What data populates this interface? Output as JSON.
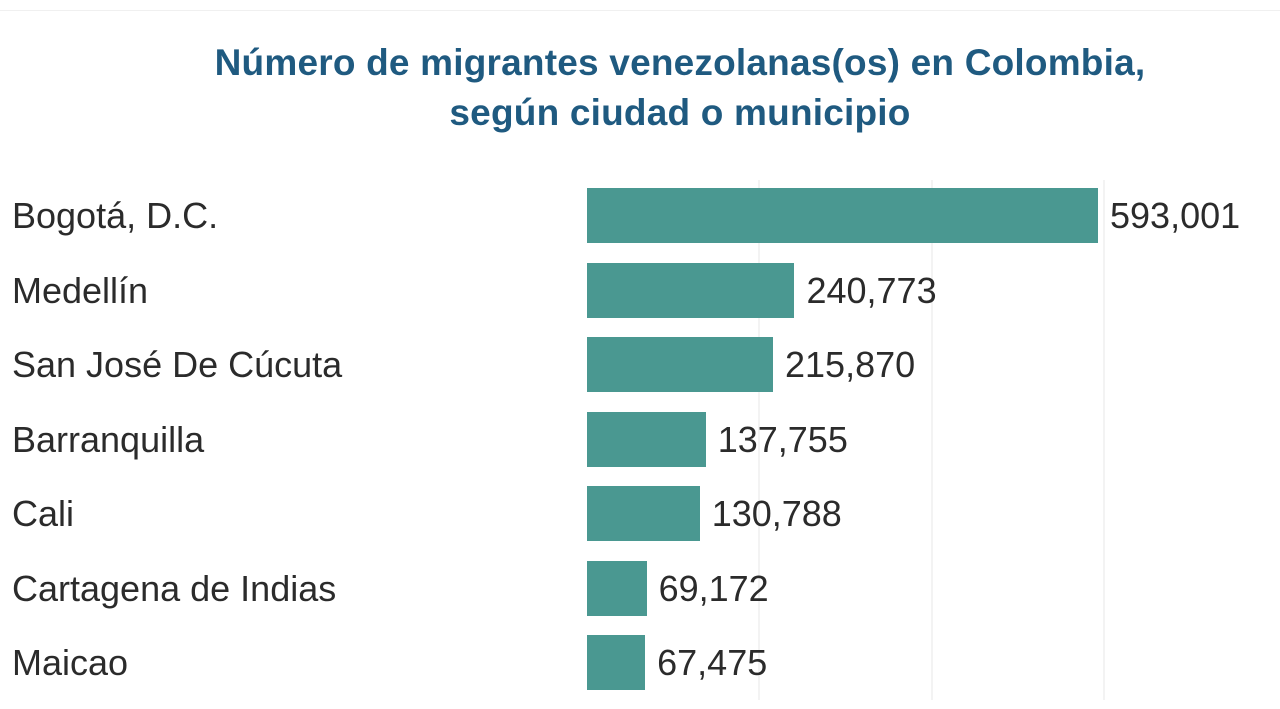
{
  "chart_data": {
    "type": "bar",
    "orientation": "horizontal",
    "title": "Número de migrantes venezolanas(os) en Colombia, según ciudad o municipio",
    "title_lines": [
      "Número de migrantes venezolanas(os) en Colombia,",
      "según ciudad o municipio"
    ],
    "categories": [
      "Bogotá, D.C.",
      "Medellín",
      "San José De Cúcuta",
      "Barranquilla",
      "Cali",
      "Cartagena de Indias",
      "Maicao"
    ],
    "values": [
      593001,
      240773,
      215870,
      137755,
      130788,
      69172,
      67475
    ],
    "value_labels": [
      "593,001",
      "240,773",
      "215,870",
      "137,755",
      "130,788",
      "69,172",
      "67,475"
    ],
    "xlabel": "",
    "ylabel": "",
    "xlim": [
      0,
      600000
    ],
    "grid": true,
    "legend": null,
    "bar_color": "#4a9891",
    "title_color": "#1f5a80"
  }
}
